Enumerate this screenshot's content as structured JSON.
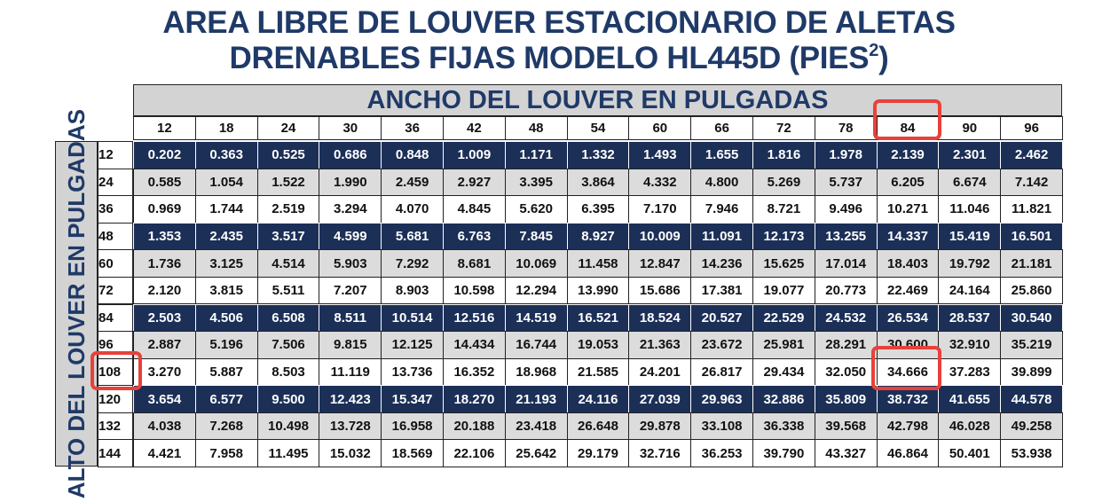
{
  "header": {
    "title_line1": "AREA LIBRE DE LOUVER ESTACIONARIO DE ALETAS",
    "title_line2": "DRENABLES FIJAS MODELO HL445D (PIES",
    "title_sup": "2",
    "title_end": ")"
  },
  "table": {
    "column_title": "ANCHO DEL LOUVER EN PULGADAS",
    "row_title": "ALTO DEL LOUVER EN PULGADAS",
    "columns": [
      12,
      18,
      24,
      30,
      36,
      42,
      48,
      54,
      60,
      66,
      72,
      78,
      84,
      90,
      96
    ],
    "row_labels": [
      12,
      24,
      36,
      48,
      60,
      72,
      84,
      96,
      108,
      120,
      132,
      144
    ],
    "rows": [
      [
        "0.202",
        "0.363",
        "0.525",
        "0.686",
        "0.848",
        "1.009",
        "1.171",
        "1.332",
        "1.493",
        "1.655",
        "1.816",
        "1.978",
        "2.139",
        "2.301",
        "2.462"
      ],
      [
        "0.585",
        "1.054",
        "1.522",
        "1.990",
        "2.459",
        "2.927",
        "3.395",
        "3.864",
        "4.332",
        "4.800",
        "5.269",
        "5.737",
        "6.205",
        "6.674",
        "7.142"
      ],
      [
        "0.969",
        "1.744",
        "2.519",
        "3.294",
        "4.070",
        "4.845",
        "5.620",
        "6.395",
        "7.170",
        "7.946",
        "8.721",
        "9.496",
        "10.271",
        "11.046",
        "11.821"
      ],
      [
        "1.353",
        "2.435",
        "3.517",
        "4.599",
        "5.681",
        "6.763",
        "7.845",
        "8.927",
        "10.009",
        "11.091",
        "12.173",
        "13.255",
        "14.337",
        "15.419",
        "16.501"
      ],
      [
        "1.736",
        "3.125",
        "4.514",
        "5.903",
        "7.292",
        "8.681",
        "10.069",
        "11.458",
        "12.847",
        "14.236",
        "15.625",
        "17.014",
        "18.403",
        "19.792",
        "21.181"
      ],
      [
        "2.120",
        "3.815",
        "5.511",
        "7.207",
        "8.903",
        "10.598",
        "12.294",
        "13.990",
        "15.686",
        "17.381",
        "19.077",
        "20.773",
        "22.469",
        "24.164",
        "25.860"
      ],
      [
        "2.503",
        "4.506",
        "6.508",
        "8.511",
        "10.514",
        "12.516",
        "14.519",
        "16.521",
        "18.524",
        "20.527",
        "22.529",
        "24.532",
        "26.534",
        "28.537",
        "30.540"
      ],
      [
        "2.887",
        "5.196",
        "7.506",
        "9.815",
        "12.125",
        "14.434",
        "16.744",
        "19.053",
        "21.363",
        "23.672",
        "25.981",
        "28.291",
        "30.600",
        "32.910",
        "35.219"
      ],
      [
        "3.270",
        "5.887",
        "8.503",
        "11.119",
        "13.736",
        "16.352",
        "18.968",
        "21.585",
        "24.201",
        "26.817",
        "29.434",
        "32.050",
        "34.666",
        "37.283",
        "39.899"
      ],
      [
        "3.654",
        "6.577",
        "9.500",
        "12.423",
        "15.347",
        "18.270",
        "21.193",
        "24.116",
        "27.039",
        "29.963",
        "32.886",
        "35.809",
        "38.732",
        "41.655",
        "44.578"
      ],
      [
        "4.038",
        "7.268",
        "10.498",
        "13.728",
        "16.958",
        "20.188",
        "23.418",
        "26.648",
        "29.878",
        "33.108",
        "36.338",
        "39.568",
        "42.798",
        "46.028",
        "49.258"
      ],
      [
        "4.421",
        "7.958",
        "11.495",
        "15.032",
        "18.569",
        "22.106",
        "25.642",
        "29.179",
        "32.716",
        "36.253",
        "39.790",
        "43.327",
        "46.864",
        "50.401",
        "53.938"
      ]
    ]
  }
}
